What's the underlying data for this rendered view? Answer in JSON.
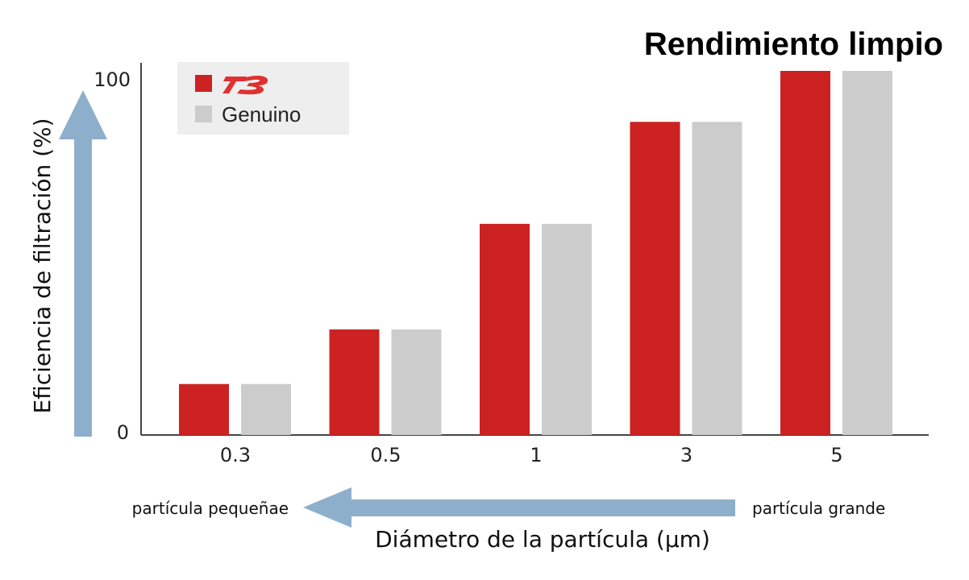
{
  "chart_data": {
    "type": "bar",
    "title": "Rendimiento limpio",
    "xlabel": "Diámetro de la partícula (μm)",
    "ylabel": "Eficiencia de filtración (%)",
    "categories": [
      "0.3",
      "0.5",
      "1",
      "3",
      "5"
    ],
    "series": [
      {
        "name": "",
        "values": [
          14,
          29,
          58,
          86,
          100
        ]
      },
      {
        "name": "Genuino",
        "values": [
          14,
          29,
          58,
          86,
          100
        ]
      }
    ],
    "ylim": [
      0,
      100
    ],
    "yticks": [
      "0",
      "100"
    ],
    "grid": false,
    "legend": "top-left",
    "annotations": {
      "small_particle": "partícula pequeñae",
      "large_particle": "partícula grande"
    }
  },
  "colors": {
    "series_1": "#cc2222",
    "series_2": "#cccccc",
    "axis_arrow": "#8eafcb",
    "legend_bg": "#eeeeee",
    "logo": "#e03030"
  },
  "icons": {
    "brand_logo": "brand-logo-icon"
  }
}
